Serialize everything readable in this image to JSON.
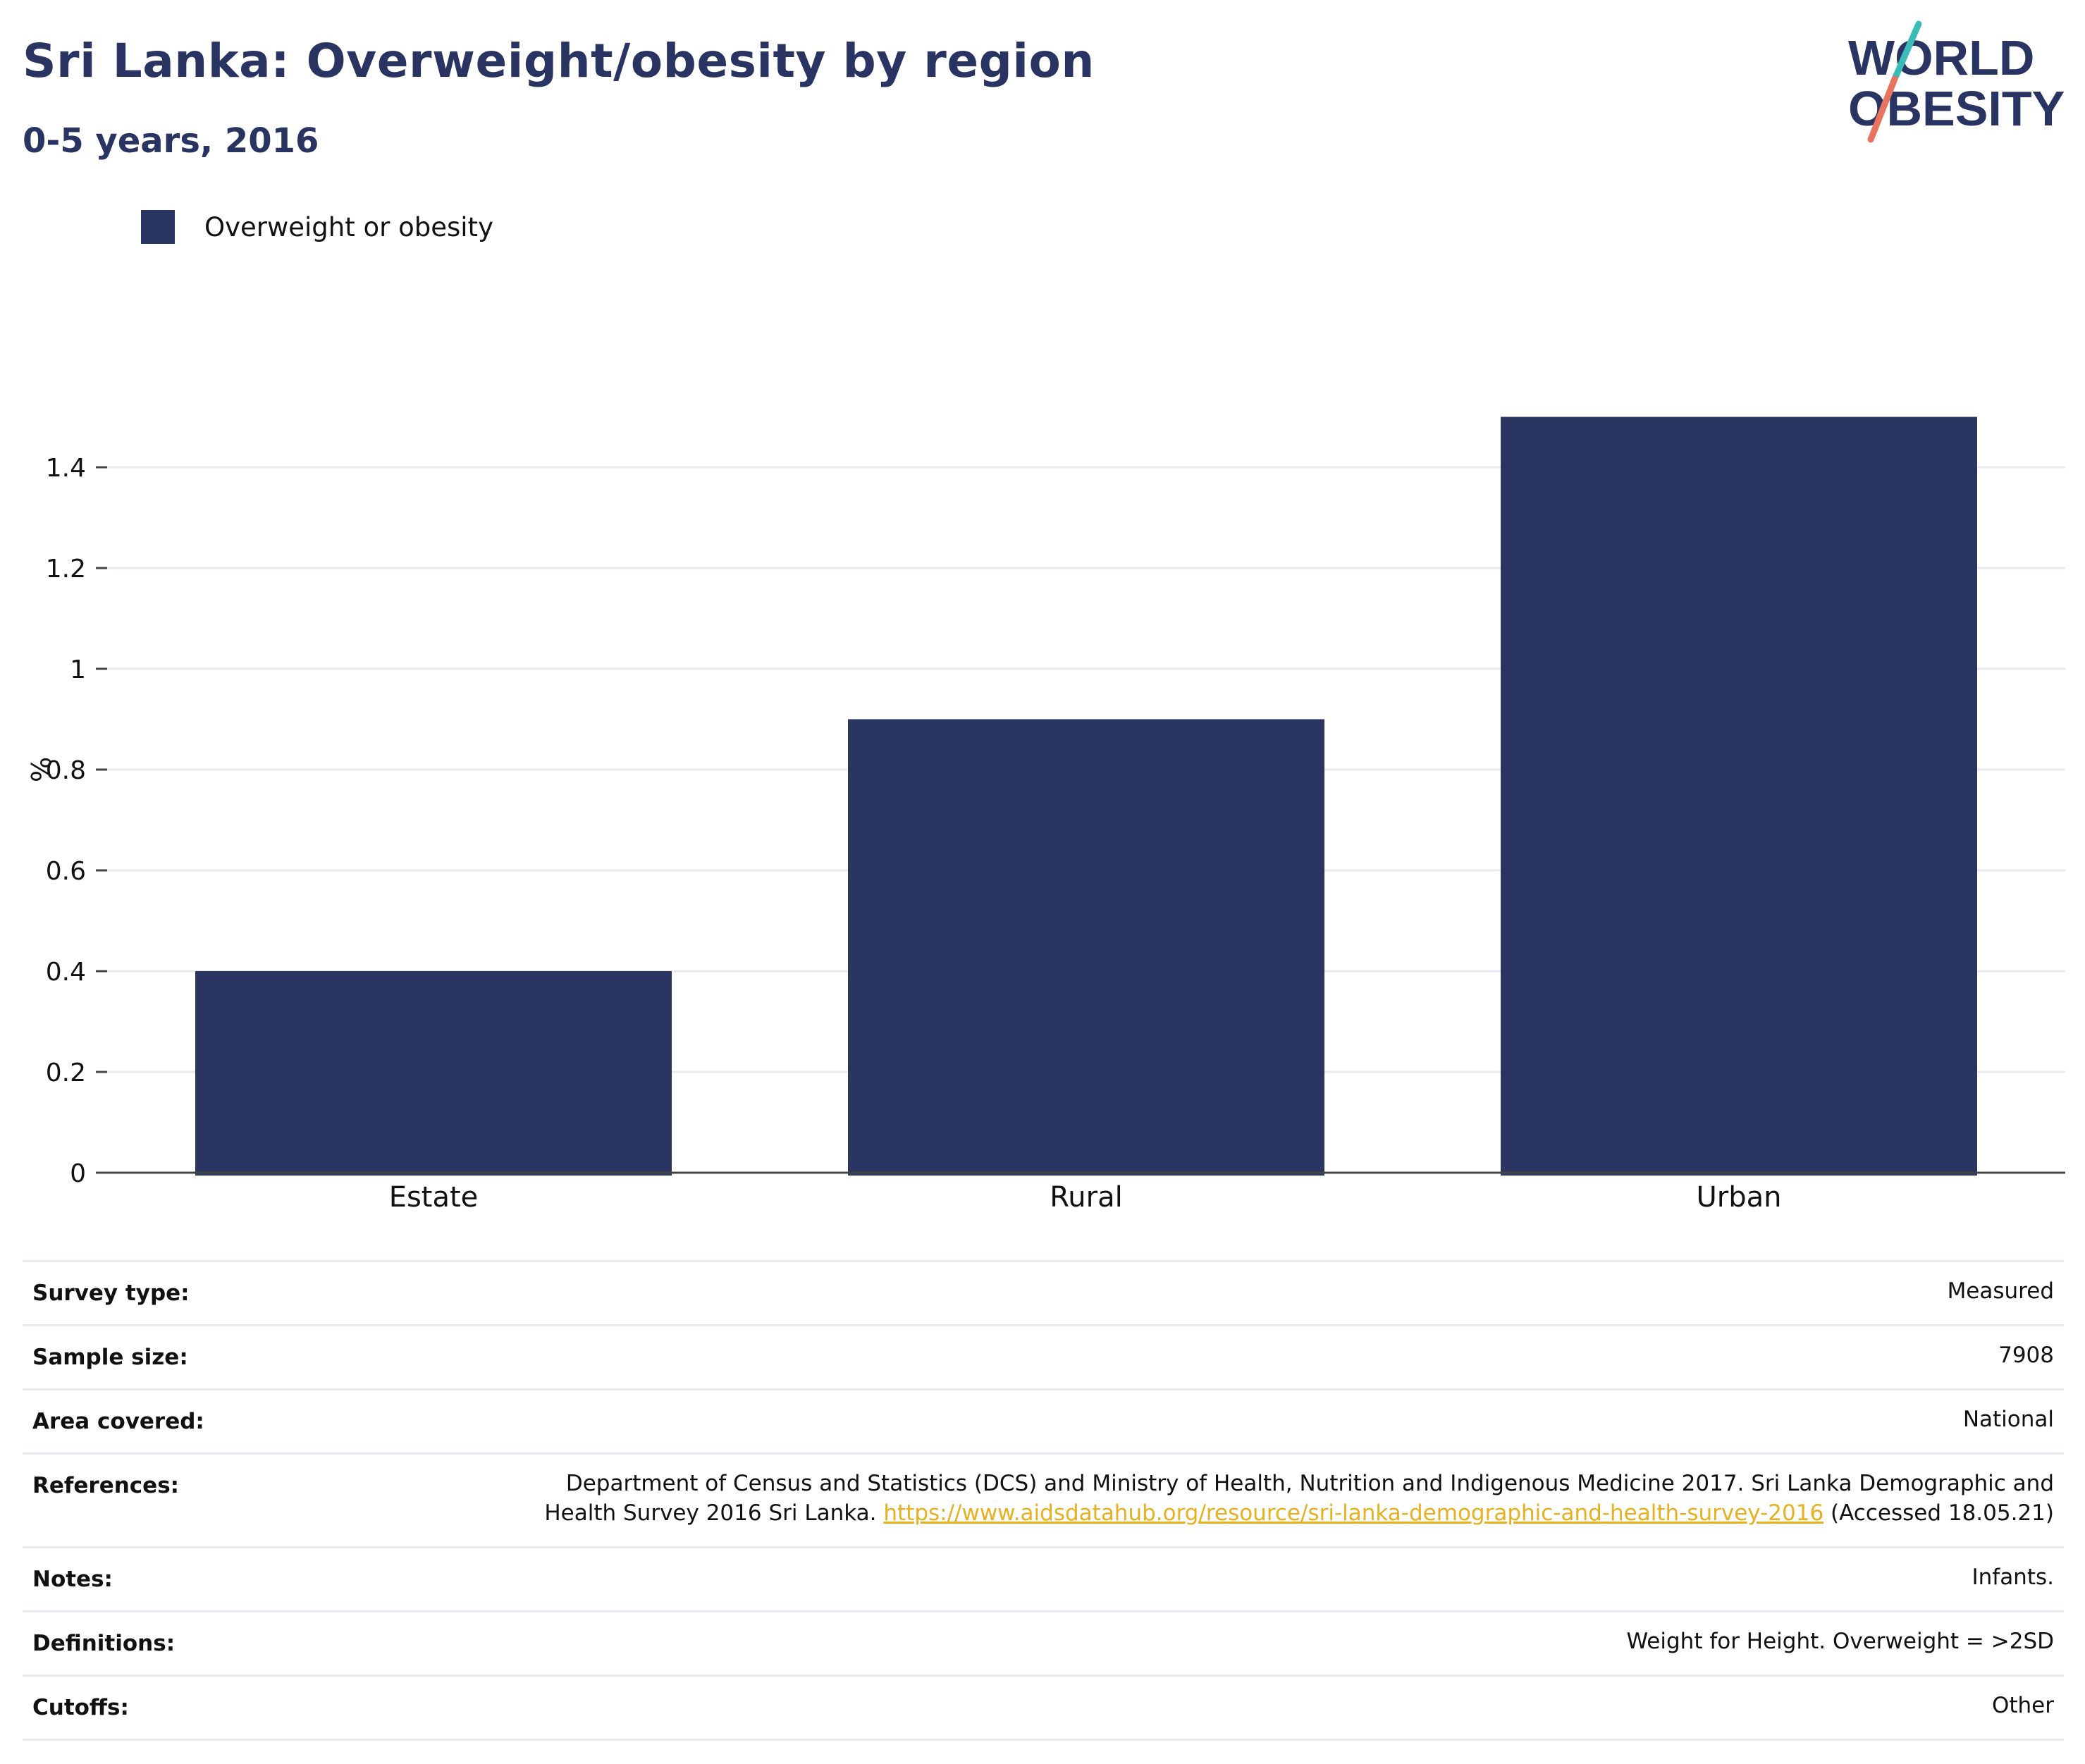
{
  "header": {
    "title": "Sri Lanka: Overweight/obesity by region",
    "subtitle": "0-5 years, 2016"
  },
  "logo": {
    "line1": "WORLD",
    "line2": "OBESITY",
    "colors": {
      "text": "#2a3462",
      "accent_teal": "#3bbcb8",
      "accent_coral": "#e8735f"
    }
  },
  "chart_data": {
    "type": "bar",
    "title": "Sri Lanka: Overweight/obesity by region",
    "subtitle": "0-5 years, 2016",
    "categories": [
      "Estate",
      "Rural",
      "Urban"
    ],
    "series": [
      {
        "name": "Overweight or obesity",
        "values": [
          0.4,
          0.9,
          1.5
        ],
        "color": "#2a3562"
      }
    ],
    "xlabel": "",
    "ylabel": "%",
    "ylim": [
      0,
      1.6
    ],
    "yticks": [
      0,
      0.2,
      0.4,
      0.6,
      0.8,
      1,
      1.2,
      1.4
    ],
    "ytick_labels": [
      "0",
      "0.2",
      "0.4",
      "0.6",
      "0.8",
      "1",
      "1.2",
      "1.4"
    ],
    "grid": true,
    "legend": "top-left"
  },
  "info": {
    "rows": [
      {
        "label": "Survey type:",
        "value": "Measured"
      },
      {
        "label": "Sample size:",
        "value": "7908"
      },
      {
        "label": "Area covered:",
        "value": "National"
      },
      {
        "label": "References:",
        "value_before": "Department of Census and Statistics (DCS) and Ministry of Health, Nutrition and Indigenous Medicine 2017. Sri Lanka Demographic and Health Survey 2016 Sri Lanka. ",
        "link": "https://www.aidsdatahub.org/resource/sri-lanka-demographic-and-health-survey-2016",
        "value_after": " (Accessed 18.05.21)"
      },
      {
        "label": "Notes:",
        "value": "Infants."
      },
      {
        "label": "Definitions:",
        "value": "Weight for Height. Overweight = >2SD"
      },
      {
        "label": "Cutoffs:",
        "value": "Other"
      }
    ]
  }
}
